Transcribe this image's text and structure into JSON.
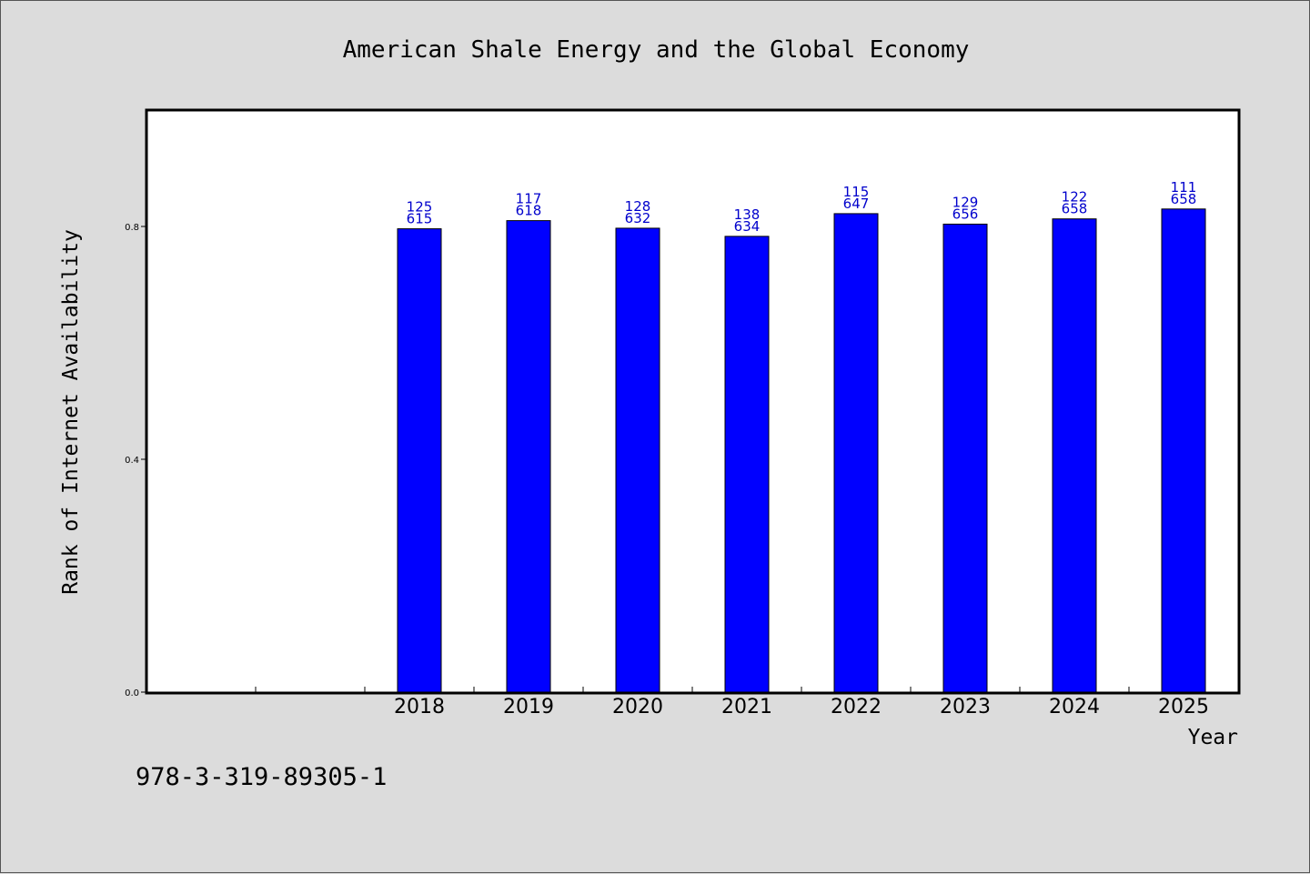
{
  "chart_data": {
    "type": "bar",
    "title": "American Shale Energy and the Global Economy",
    "xlabel": "Year",
    "ylabel": "Rank of Internet Availability",
    "categories": [
      "2018",
      "2019",
      "2020",
      "2021",
      "2022",
      "2023",
      "2024",
      "2025"
    ],
    "values": [
      0.796,
      0.81,
      0.797,
      0.783,
      0.822,
      0.804,
      0.813,
      0.83
    ],
    "labels_top": [
      "125",
      "117",
      "128",
      "138",
      "115",
      "129",
      "122",
      "111"
    ],
    "labels_bottom": [
      "615",
      "618",
      "632",
      "634",
      "647",
      "656",
      "658",
      "658"
    ],
    "ylim": [
      0,
      1.0
    ],
    "yticks": [
      "0.0",
      "0.4",
      "0.8"
    ],
    "bar_color": "#0000ff",
    "label_color": "#0000cc",
    "grid": false
  },
  "footer": {
    "isbn": "978-3-319-89305-1"
  }
}
